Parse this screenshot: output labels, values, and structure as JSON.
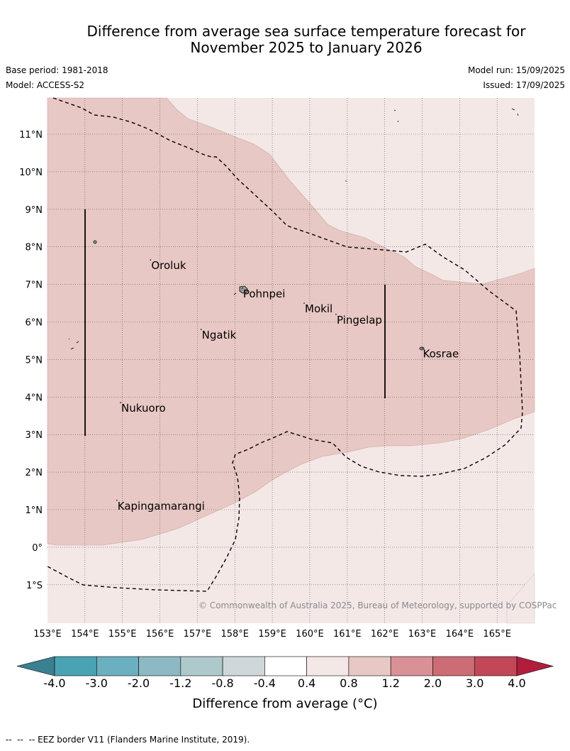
{
  "header": {
    "title_line1": "Difference from average sea surface temperature forecast for",
    "title_line2": "November 2025 to January 2026",
    "base_period": "Base period: 1981-2018",
    "model": "Model: ACCESS-S2",
    "model_run": "Model run: 15/09/2025",
    "issued": "Issued: 17/09/2025"
  },
  "map": {
    "lon_labels": [
      "153°E",
      "154°E",
      "155°E",
      "156°E",
      "157°E",
      "158°E",
      "159°E",
      "160°E",
      "161°E",
      "162°E",
      "163°E",
      "164°E",
      "165°E"
    ],
    "lat_labels": [
      "11°N",
      "10°N",
      "9°N",
      "8°N",
      "7°N",
      "6°N",
      "5°N",
      "4°N",
      "3°N",
      "2°N",
      "1°N",
      "0°",
      "1°S"
    ],
    "places": [
      {
        "name": "Oroluk",
        "lon": 155.75,
        "lat": 7.65
      },
      {
        "name": "Pohnpei",
        "lon": 158.2,
        "lat": 6.9
      },
      {
        "name": "Mokil",
        "lon": 159.85,
        "lat": 6.5
      },
      {
        "name": "Pingelap",
        "lon": 160.7,
        "lat": 6.2
      },
      {
        "name": "Ngatik",
        "lon": 157.1,
        "lat": 5.8
      },
      {
        "name": "Kosrae",
        "lon": 163.0,
        "lat": 5.3
      },
      {
        "name": "Nukuoro",
        "lon": 154.95,
        "lat": 3.85
      },
      {
        "name": "Kapingamarangi",
        "lon": 154.85,
        "lat": 1.25
      }
    ],
    "copyright": "© Commonwealth of Australia 2025, Bureau of Meteorology, supported by COSPPac",
    "colors": {
      "band_04_08": "#f4e8e7",
      "band_08_12": "#e8c8c4"
    }
  },
  "colorbar": {
    "tick_labels": [
      "-4.0",
      "-3.0",
      "-2.0",
      "-1.2",
      "-0.8",
      "-0.4",
      "0.4",
      "0.8",
      "1.2",
      "2.0",
      "3.0",
      "4.0"
    ],
    "colors": [
      "#3a8090",
      "#4aa3b3",
      "#6bb0c0",
      "#8cb9c4",
      "#adc9cc",
      "#cfd7da",
      "#ffffff",
      "#f4e8e7",
      "#e8c8c4",
      "#d99096",
      "#cc6c74",
      "#c24858",
      "#b01e3c"
    ],
    "label": "Difference from average (°C)"
  },
  "footer": {
    "legend_text": "EEZ border V11 (Flanders Marine Institute, 2019)."
  }
}
